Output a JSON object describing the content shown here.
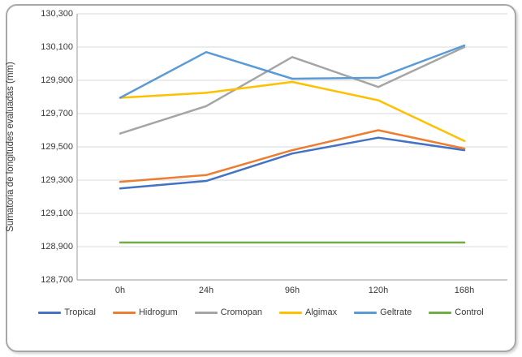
{
  "figure": {
    "border_color": "#a8a8a8",
    "background": "#ffffff",
    "gridline_color": "#d9d9d9",
    "axis_color": "#9b9b9b"
  },
  "chart_data": {
    "type": "line",
    "title": "",
    "xlabel": "",
    "ylabel": "Sumatoria de longitudes evaluadas (mm)",
    "categories": [
      "0h",
      "24h",
      "96h",
      "120h",
      "168h"
    ],
    "series": [
      {
        "name": "Tropical",
        "color": "#4472C4",
        "values": [
          129250,
          129295,
          129460,
          129555,
          129480
        ]
      },
      {
        "name": "Hidrogum",
        "color": "#ED7D31",
        "values": [
          129290,
          129330,
          129480,
          129600,
          129490
        ]
      },
      {
        "name": "Cromopan",
        "color": "#A5A5A5",
        "values": [
          129580,
          129745,
          130040,
          129860,
          130100
        ]
      },
      {
        "name": "Algimax",
        "color": "#FFC000",
        "values": [
          129795,
          129825,
          129890,
          129780,
          129535
        ]
      },
      {
        "name": "Geltrate",
        "color": "#5B9BD5",
        "values": [
          129795,
          130070,
          129910,
          129915,
          130110
        ]
      },
      {
        "name": "Control",
        "color": "#70AD47",
        "values": [
          128925,
          128925,
          128925,
          128925,
          128925
        ]
      }
    ],
    "ylim": [
      128700,
      130300
    ],
    "ytick_step": 200,
    "ytick_labels": [
      "130,300",
      "130,100",
      "129,900",
      "129,700",
      "129,500",
      "129,300",
      "129,100",
      "128,900",
      "128,700"
    ],
    "grid": true,
    "legend_position": "bottom"
  }
}
